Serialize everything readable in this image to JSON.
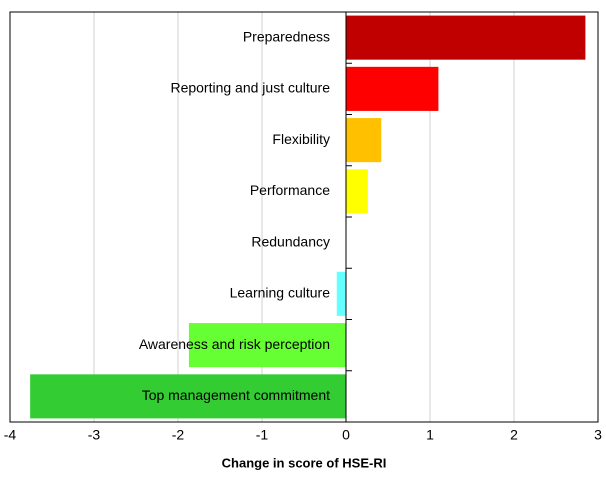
{
  "chart_data": {
    "type": "barh",
    "x_label": "Change in score of HSE-RI",
    "categories": [
      "Preparedness",
      "Reporting and just culture",
      "Flexibility",
      "Performance",
      "Redundancy",
      "Learning culture",
      "Awareness and risk perception",
      "Top management commitment"
    ],
    "values": [
      2.85,
      1.1,
      0.42,
      0.26,
      0,
      -0.11,
      -1.87,
      -3.76
    ],
    "colors": [
      "#c00000",
      "#ff0000",
      "#ffc000",
      "#ffff00",
      "#ffffff",
      "#66ffff",
      "#66ff33",
      "#33cc33"
    ],
    "xlim": [
      -4,
      3
    ],
    "xticks": [
      -4,
      -3,
      -2,
      -1,
      0,
      1,
      2,
      3
    ],
    "grid": true
  }
}
